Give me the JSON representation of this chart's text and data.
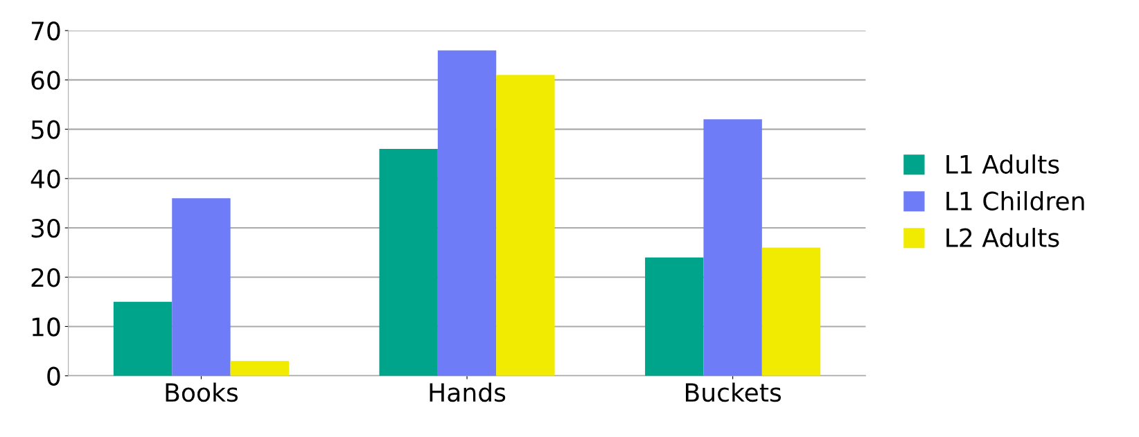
{
  "chart_data": {
    "type": "bar",
    "categories": [
      "Books",
      "Hands",
      "Buckets"
    ],
    "series": [
      {
        "name": "L1 Adults",
        "color": "#00a48a",
        "values": [
          15,
          46,
          24
        ]
      },
      {
        "name": "L1 Children",
        "color": "#6f7cf7",
        "values": [
          36,
          66,
          52
        ]
      },
      {
        "name": "L2 Adults",
        "color": "#f0eb00",
        "values": [
          3,
          61,
          26
        ]
      }
    ],
    "ylim": [
      0,
      70
    ],
    "yticks": [
      0,
      10,
      20,
      30,
      40,
      50,
      60,
      70
    ],
    "grid": "y",
    "legend": "right"
  }
}
